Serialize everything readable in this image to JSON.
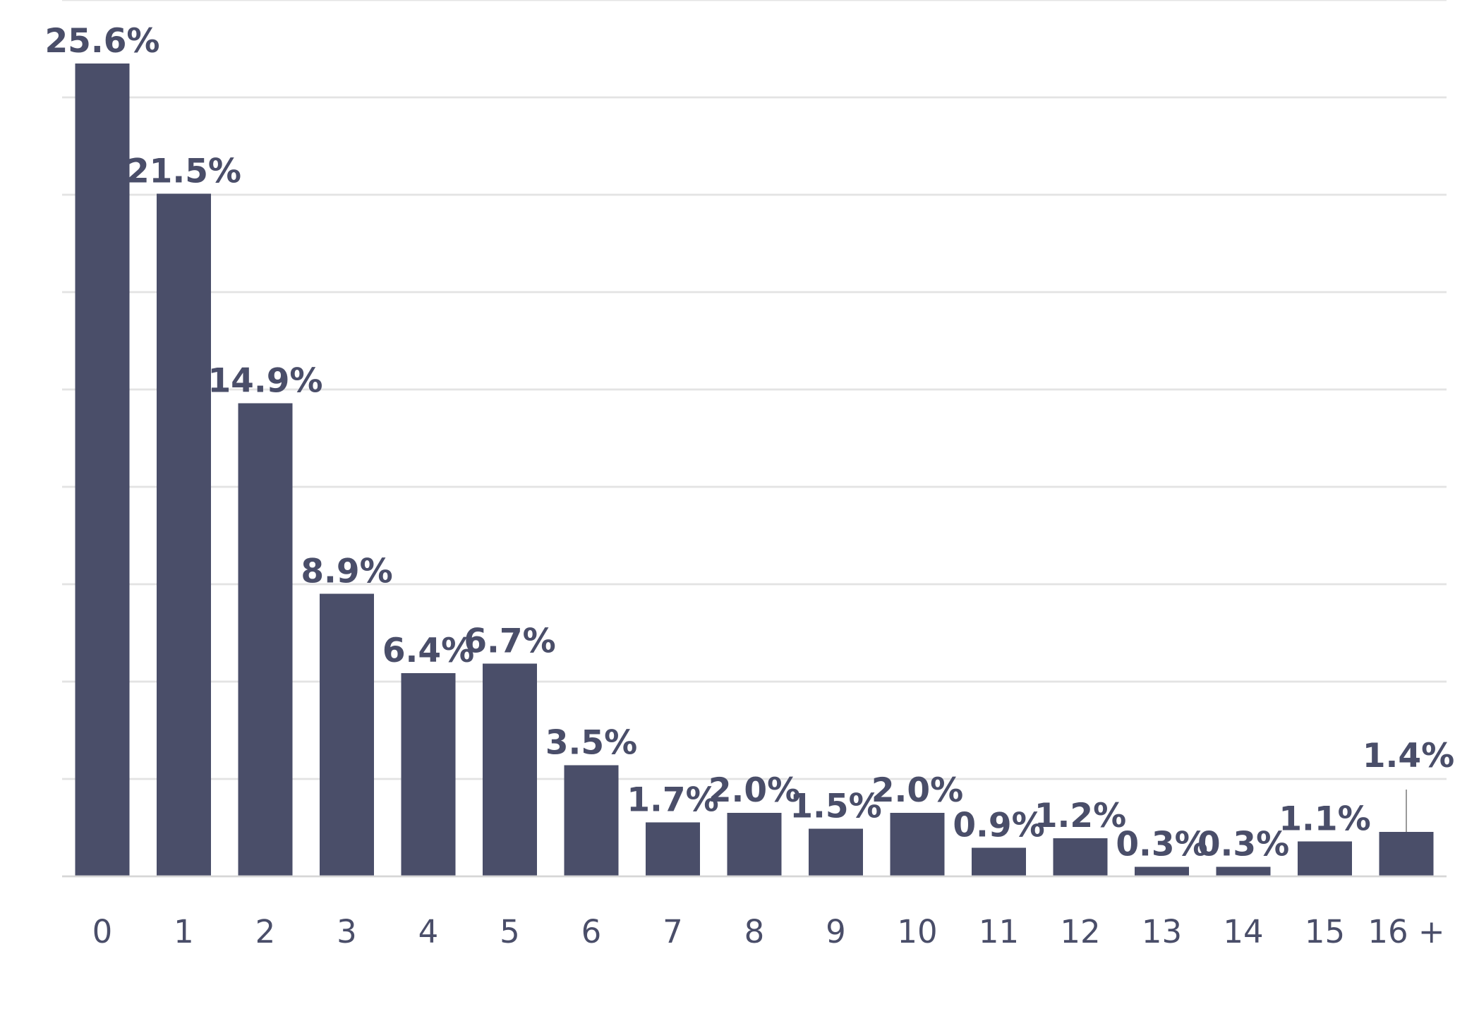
{
  "chart_data": {
    "type": "bar",
    "categories": [
      "0",
      "1",
      "2",
      "3",
      "4",
      "5",
      "6",
      "7",
      "8",
      "9",
      "10",
      "11",
      "12",
      "13",
      "14",
      "15",
      "16 +"
    ],
    "values": [
      25.6,
      21.5,
      14.9,
      8.9,
      6.4,
      6.7,
      3.5,
      1.7,
      2.0,
      1.5,
      2.0,
      0.9,
      1.2,
      0.3,
      0.3,
      1.1,
      1.4
    ],
    "value_labels": [
      "25.6%",
      "21.5%",
      "14.9%",
      "8.9%",
      "6.4%",
      "6.7%",
      "3.5%",
      "1.7%",
      "2.0%",
      "1.5%",
      "2.0%",
      "0.9%",
      "1.2%",
      "0.3%",
      "0.3%",
      "1.1%",
      "1.4%"
    ],
    "ylim": [
      0,
      27.6
    ],
    "grid": true,
    "legend": "none",
    "colors": {
      "bar": "#4a4e69",
      "text": "#4a4e69",
      "grid": "#e3e3e3"
    }
  }
}
